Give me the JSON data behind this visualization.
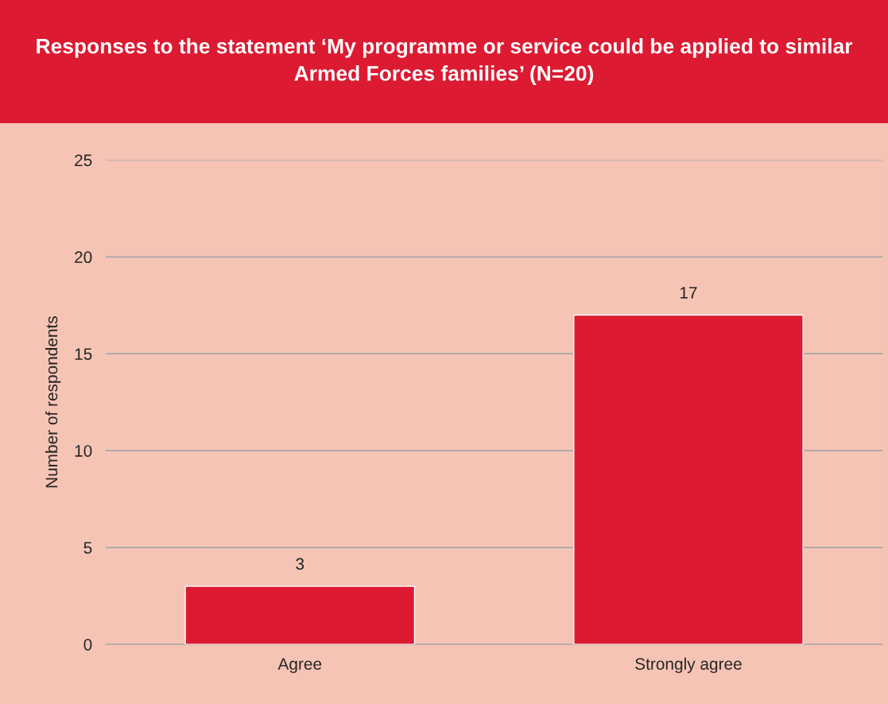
{
  "chart_data": {
    "type": "bar",
    "title": "Responses to the statement ‘My programme or service could be applied to similar Armed Forces families’ (N=20)",
    "ylabel": "Number of respondents",
    "categories": [
      "Agree",
      "Strongly agree"
    ],
    "values": [
      3,
      17
    ],
    "color": "#dc1a32",
    "ylim": [
      0,
      25
    ],
    "yticks": [
      0,
      5,
      10,
      15,
      20,
      25
    ],
    "grid": "y",
    "data_labels": true,
    "legend": false
  }
}
